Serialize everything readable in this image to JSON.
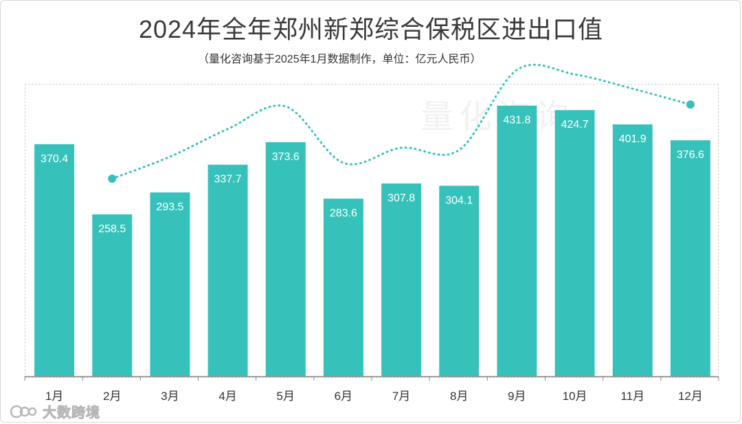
{
  "title": "2024年全年郑州新郑综合保税区进出口值",
  "subtitle": "（量化咨询基于2025年1月数据制作，单位：亿元人民币）",
  "watermark": "量化咨询",
  "brand": {
    "logo_text": "大数跨境"
  },
  "colors": {
    "bar": "#36c2bb",
    "line": "#36c2bb",
    "label": "#ffffff",
    "axis": "#888888"
  },
  "chart_data": {
    "type": "bar",
    "title": "2024年全年郑州新郑综合保税区进出口值",
    "unit": "亿元人民币",
    "categories": [
      "1月",
      "2月",
      "3月",
      "4月",
      "5月",
      "6月",
      "7月",
      "8月",
      "9月",
      "10月",
      "11月",
      "12月"
    ],
    "values": [
      370.4,
      258.5,
      293.5,
      337.7,
      373.6,
      283.6,
      307.8,
      304.1,
      431.8,
      424.7,
      401.9,
      376.6
    ],
    "ylim": [
      0,
      460
    ],
    "grid": false,
    "overlay_line": {
      "style": "dotted-smooth",
      "points_marked": [
        "2月",
        "12月"
      ]
    }
  }
}
